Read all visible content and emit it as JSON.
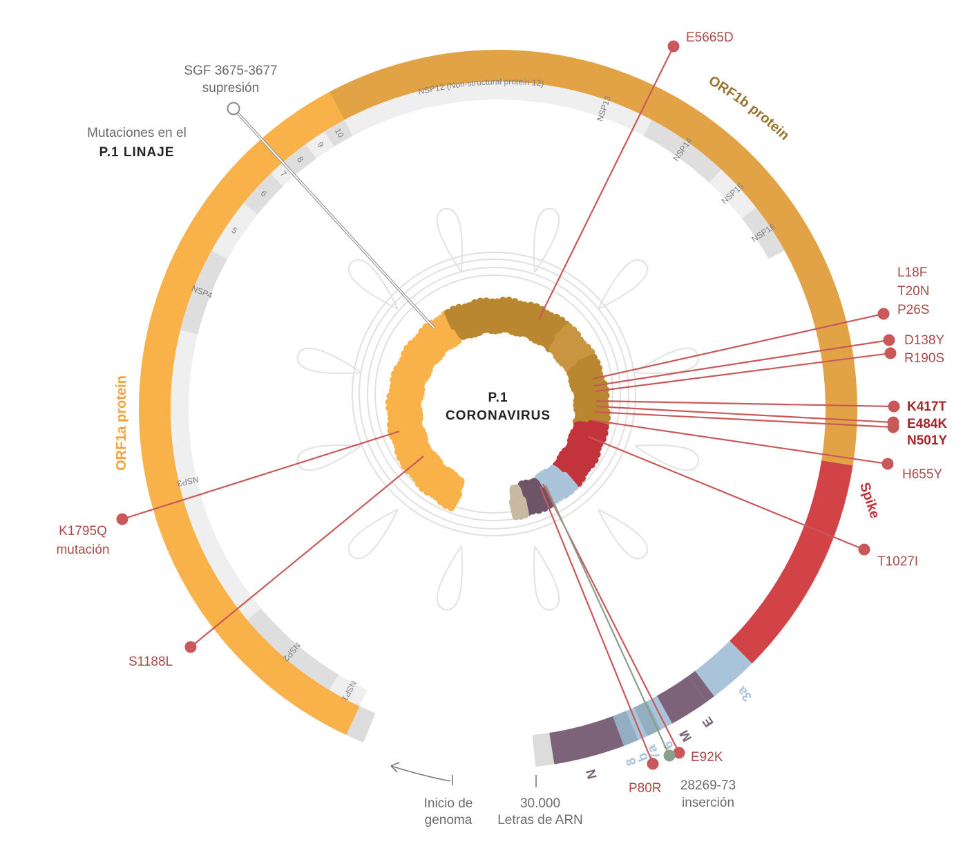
{
  "center": {
    "line1": "P.1",
    "line2": "CORONAVIRUS"
  },
  "title": {
    "line1": "Mutaciones en el",
    "line2": "P.1 LINAJE"
  },
  "proteins": {
    "orf1a": {
      "label": "ORF1a protein",
      "color": "#f9b24a"
    },
    "orf1b": {
      "label": "ORF1b protein",
      "color": "#e2a347",
      "text_color": "#9a7330"
    },
    "spike": {
      "label": "Spike",
      "color": "#d14347",
      "text_color": "#c2333b"
    }
  },
  "nsp_segments": [
    {
      "id": "nsp1",
      "label": "NSP1"
    },
    {
      "id": "nsp2",
      "label": "NSP2"
    },
    {
      "id": "nsp3",
      "label": "NSP3"
    },
    {
      "id": "nsp4",
      "label": "NSP4"
    },
    {
      "id": "nsp5",
      "label": "5"
    },
    {
      "id": "nsp6",
      "label": "6"
    },
    {
      "id": "nsp7",
      "label": "7"
    },
    {
      "id": "nsp8",
      "label": "8"
    },
    {
      "id": "nsp9",
      "label": "9"
    },
    {
      "id": "nsp10",
      "label": "10"
    },
    {
      "id": "nsp12",
      "label": "NSP12 (Non-structural protein 12)"
    },
    {
      "id": "nsp13",
      "label": "NSP13"
    },
    {
      "id": "nsp14",
      "label": "NSP14"
    },
    {
      "id": "nsp15",
      "label": "NSP15"
    },
    {
      "id": "nsp16",
      "label": "NSP16"
    }
  ],
  "genes": [
    {
      "id": "3a",
      "label": "3a",
      "color": "#a9c4d8"
    },
    {
      "id": "E",
      "label": "E",
      "color": "#7d6379"
    },
    {
      "id": "M",
      "label": "M",
      "color": "#7d6379"
    },
    {
      "id": "6",
      "label": "6",
      "color": "#a9c4d8"
    },
    {
      "id": "7a",
      "label": "7a",
      "color": "#a9c4d8"
    },
    {
      "id": "b",
      "label": "b",
      "color": "#a9c4d8"
    },
    {
      "id": "8",
      "label": "8",
      "color": "#a9c4d8"
    },
    {
      "id": "N",
      "label": "N",
      "color": "#7d6379"
    }
  ],
  "mutations": [
    {
      "id": "e5665d",
      "lines": [
        "E5665D"
      ]
    },
    {
      "id": "spike-nterm",
      "lines": [
        "L18F",
        "T20N",
        "P26S"
      ]
    },
    {
      "id": "d138y",
      "lines": [
        "D138Y"
      ]
    },
    {
      "id": "r190s",
      "lines": [
        "R190S"
      ]
    },
    {
      "id": "k417t",
      "lines": [
        "K417T"
      ],
      "bold": true
    },
    {
      "id": "e484k",
      "lines": [
        "E484K"
      ],
      "bold": true
    },
    {
      "id": "n501y",
      "lines": [
        "N501Y"
      ],
      "bold": true
    },
    {
      "id": "h655y",
      "lines": [
        "H655Y"
      ]
    },
    {
      "id": "t1027i",
      "lines": [
        "T1027I"
      ]
    },
    {
      "id": "e92k",
      "lines": [
        "E92K"
      ]
    },
    {
      "id": "p80r",
      "lines": [
        "P80R"
      ]
    },
    {
      "id": "s1188l",
      "lines": [
        "S1188L"
      ]
    },
    {
      "id": "k1795q",
      "lines": [
        "K1795Q",
        "mutación"
      ]
    }
  ],
  "deletion": {
    "lines": [
      "SGF 3675-3677",
      "supresión"
    ]
  },
  "insertion": {
    "lines": [
      "28269-73",
      "inserción"
    ]
  },
  "genome_start": {
    "lines": [
      "Inicio de",
      "genoma"
    ]
  },
  "genome_end": {
    "lines": [
      "30.000",
      "Letras de ARN"
    ]
  },
  "colors": {
    "mutation": "#c9585b",
    "insertion": "#8a9e8c",
    "deletion": "#8a8a8a",
    "segment_light": "#efefef",
    "segment_dark": "#dedede"
  }
}
